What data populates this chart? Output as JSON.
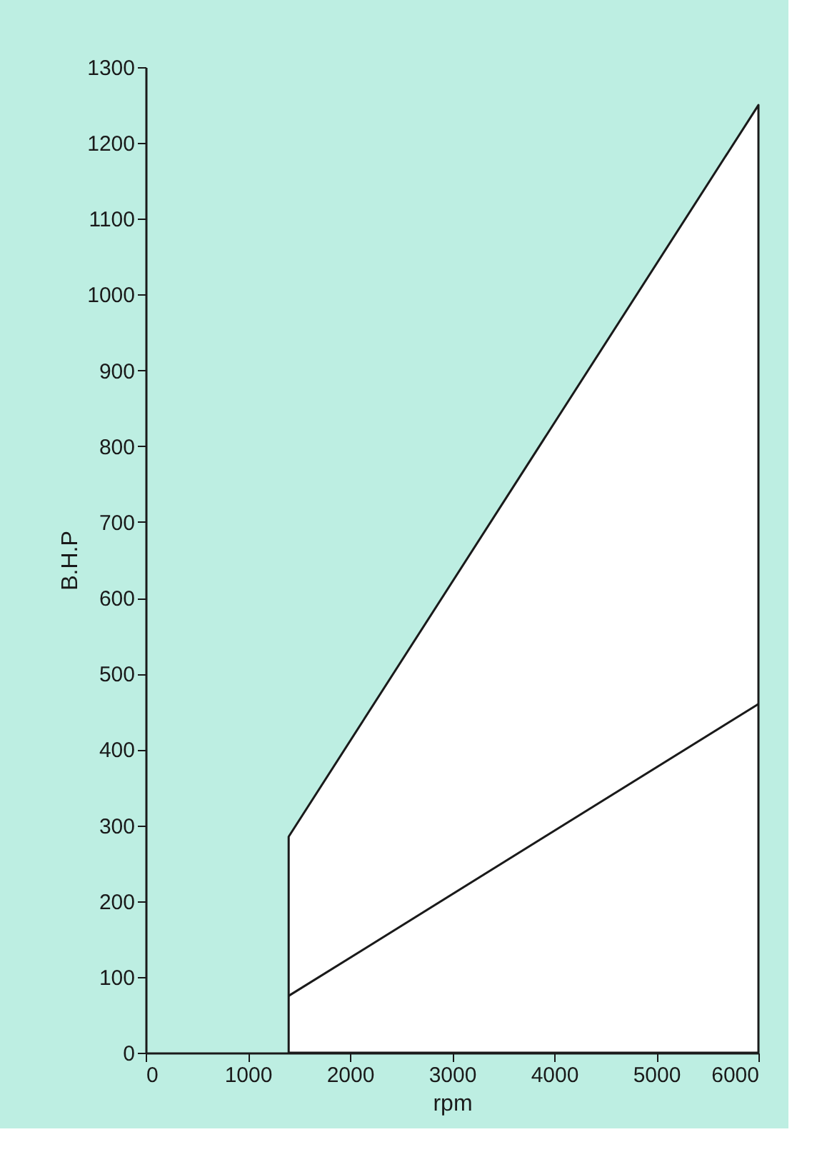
{
  "chart_data": {
    "type": "line",
    "xlabel": "rpm",
    "ylabel": "B.H.P",
    "x": [
      1400,
      6000
    ],
    "series": [
      {
        "type": "area",
        "color": "#ffffff",
        "values": [
          285,
          1250
        ]
      },
      {
        "color": "#1a1a1a",
        "values": [
          75,
          460
        ]
      }
    ],
    "xlim": [
      0,
      6000
    ],
    "xticks": [
      0,
      1000,
      2000,
      3000,
      4000,
      5000,
      6000
    ],
    "ylim": [
      0,
      1300
    ],
    "yticks": [
      0,
      100,
      200,
      300,
      400,
      500,
      600,
      700,
      800,
      900,
      1000,
      1100,
      1200,
      1300
    ],
    "grid": false
  }
}
